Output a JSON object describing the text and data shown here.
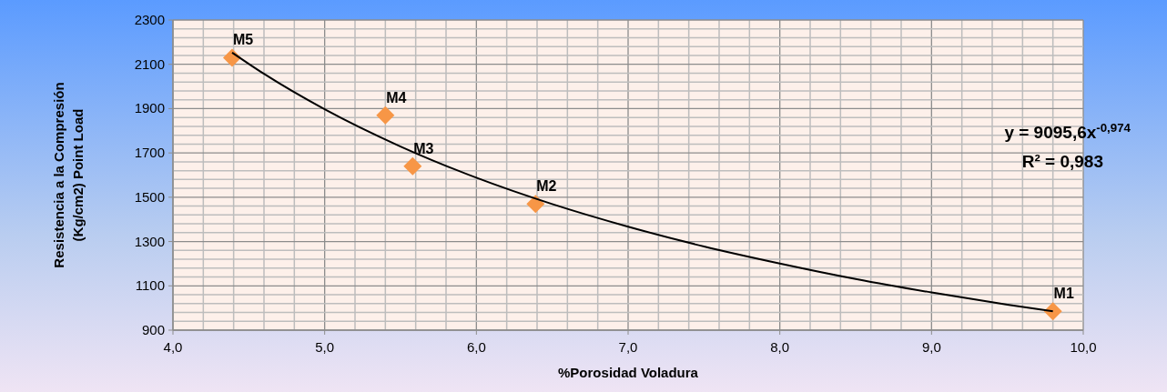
{
  "chart_data": {
    "type": "scatter",
    "xlabel": "%Porosidad Voladura",
    "ylabel": "Resistencia a la Compresión\n(Kg/cm2) Point Load",
    "xlim": [
      4,
      10
    ],
    "ylim": [
      900,
      2300
    ],
    "xticks": [
      {
        "value": 4,
        "label": "4,0"
      },
      {
        "value": 4.2,
        "label": null
      },
      {
        "value": 4.4,
        "label": null
      },
      {
        "value": 4.6,
        "label": null
      },
      {
        "value": 4.8,
        "label": null
      },
      {
        "value": 5,
        "label": "5,0"
      },
      {
        "value": 5.2,
        "label": null
      },
      {
        "value": 5.4,
        "label": null
      },
      {
        "value": 5.6,
        "label": null
      },
      {
        "value": 5.8,
        "label": null
      },
      {
        "value": 6,
        "label": "6,0"
      },
      {
        "value": 6.2,
        "label": null
      },
      {
        "value": 6.4,
        "label": null
      },
      {
        "value": 6.6,
        "label": null
      },
      {
        "value": 6.8,
        "label": null
      },
      {
        "value": 7,
        "label": "7,0"
      },
      {
        "value": 7.2,
        "label": null
      },
      {
        "value": 7.4,
        "label": null
      },
      {
        "value": 7.6,
        "label": null
      },
      {
        "value": 7.8,
        "label": null
      },
      {
        "value": 8,
        "label": "8,0"
      },
      {
        "value": 8.2,
        "label": null
      },
      {
        "value": 8.4,
        "label": null
      },
      {
        "value": 8.6,
        "label": null
      },
      {
        "value": 8.8,
        "label": null
      },
      {
        "value": 9,
        "label": "9,0"
      },
      {
        "value": 9.2,
        "label": null
      },
      {
        "value": 9.4,
        "label": null
      },
      {
        "value": 9.6,
        "label": null
      },
      {
        "value": 9.8,
        "label": null
      },
      {
        "value": 10,
        "label": "10,0"
      }
    ],
    "yticks": [
      900,
      {
        "value": 940,
        "label": null
      },
      {
        "value": 980,
        "label": null
      },
      {
        "value": 1020,
        "label": null
      },
      {
        "value": 1060,
        "label": null
      },
      1100,
      {
        "value": 1140,
        "label": null
      },
      {
        "value": 1180,
        "label": null
      },
      {
        "value": 1220,
        "label": null
      },
      {
        "value": 1260,
        "label": null
      },
      1300,
      {
        "value": 1340,
        "label": null
      },
      {
        "value": 1380,
        "label": null
      },
      {
        "value": 1420,
        "label": null
      },
      {
        "value": 1460,
        "label": null
      },
      1500,
      {
        "value": 1540,
        "label": null
      },
      {
        "value": 1580,
        "label": null
      },
      {
        "value": 1620,
        "label": null
      },
      {
        "value": 1660,
        "label": null
      },
      1700,
      {
        "value": 1740,
        "label": null
      },
      {
        "value": 1780,
        "label": null
      },
      {
        "value": 1820,
        "label": null
      },
      {
        "value": 1860,
        "label": null
      },
      1900,
      {
        "value": 1940,
        "label": null
      },
      {
        "value": 1980,
        "label": null
      },
      {
        "value": 2020,
        "label": null
      },
      {
        "value": 2060,
        "label": null
      },
      2100,
      {
        "value": 2140,
        "label": null
      },
      {
        "value": 2180,
        "label": null
      },
      {
        "value": 2220,
        "label": null
      },
      {
        "value": 2260,
        "label": null
      },
      2300
    ],
    "grid": true,
    "series": [
      {
        "marker": "diamond",
        "color": "#f79646",
        "x": [
          9.8,
          6.39,
          5.58,
          5.4,
          4.39
        ],
        "values": [
          985,
          1470,
          1640,
          1870,
          2130
        ]
      },
      {
        "type": "line",
        "marker": "none",
        "line_style": "solid",
        "color": "#000000",
        "x": [
          4.39,
          4.6,
          5,
          5.5,
          6,
          6.5,
          7,
          7.5,
          8,
          8.5,
          9,
          9.5,
          9.8
        ],
        "values": [
          2153,
          2057,
          1897,
          1729,
          1588,
          1469,
          1367,
          1278,
          1201,
          1131,
          1070,
          1015,
          985
        ]
      }
    ],
    "annotations": [
      {
        "text": "M1",
        "x": 9.8,
        "y": 985
      },
      {
        "text": "M2",
        "x": 6.39,
        "y": 1470
      },
      {
        "text": "M3",
        "x": 5.58,
        "y": 1640
      },
      {
        "text": "M4",
        "x": 5.4,
        "y": 1870
      },
      {
        "text": "M5",
        "x": 4.39,
        "y": 2130
      },
      "y = 9095,6x$^{-0,974}$",
      "R² = 0,983"
    ]
  }
}
